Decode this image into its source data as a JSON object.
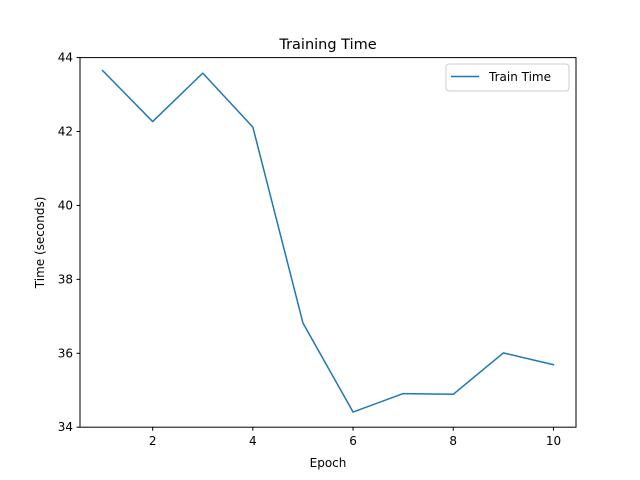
{
  "chart_data": {
    "type": "line",
    "title": "Training Time",
    "xlabel": "Epoch",
    "ylabel": "Time (seconds)",
    "xlim": [
      0.55,
      10.45
    ],
    "ylim": [
      34,
      44
    ],
    "xticks": [
      2,
      4,
      6,
      8,
      10
    ],
    "yticks": [
      34,
      36,
      38,
      40,
      42,
      44
    ],
    "grid": false,
    "legend_position": "top-right",
    "series": [
      {
        "name": "Train Time",
        "color": "#1f77b4",
        "x": [
          1,
          2,
          3,
          4,
          5,
          6,
          7,
          8,
          9,
          10
        ],
        "y": [
          43.65,
          42.27,
          43.58,
          42.12,
          36.82,
          34.41,
          34.91,
          34.89,
          36.01,
          35.69
        ]
      }
    ]
  }
}
